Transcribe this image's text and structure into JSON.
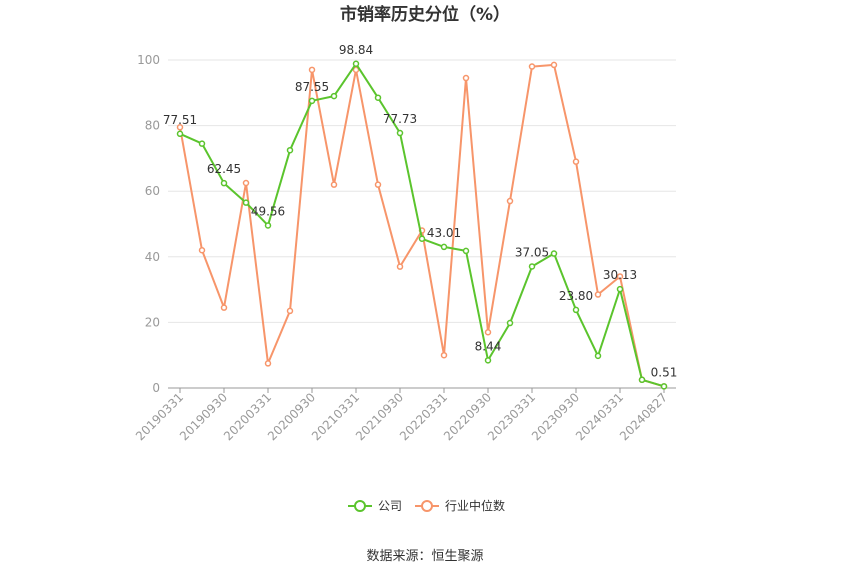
{
  "chart_data": {
    "type": "line",
    "title": "市销率历史分位（%）",
    "source": "数据来源：恒生聚源",
    "ylim": [
      0,
      100
    ],
    "yticks": [
      0,
      20,
      40,
      60,
      80,
      100
    ],
    "x": [
      "20190331",
      "20190630",
      "20190930",
      "20191231",
      "20200331",
      "20200630",
      "20200930",
      "20201231",
      "20210331",
      "20210630",
      "20210930",
      "20211231",
      "20220331",
      "20220630",
      "20220930",
      "20221231",
      "20230331",
      "20230630",
      "20230930",
      "20231231",
      "20240331",
      "20240630",
      "20240827"
    ],
    "xtick_labels": [
      "20190331",
      "20190930",
      "20200331",
      "20200930",
      "20210331",
      "20210930",
      "20220331",
      "20220930",
      "20230331",
      "20230930",
      "20240331",
      "20240827"
    ],
    "grid": true,
    "legend_position": "bottom",
    "series": [
      {
        "name": "公司",
        "color": "#5bc42d",
        "values": [
          77.51,
          74.5,
          62.45,
          56.5,
          49.56,
          72.5,
          87.55,
          89.0,
          98.84,
          88.5,
          77.73,
          45.5,
          43.01,
          41.8,
          8.44,
          19.8,
          37.05,
          41.0,
          23.8,
          9.8,
          30.13,
          2.5,
          0.51
        ],
        "labels": {
          "0": "77.51",
          "2": "62.45",
          "4": "49.56",
          "6": "87.55",
          "8": "98.84",
          "10": "77.73",
          "12": "43.01",
          "14": "8.44",
          "16": "37.05",
          "18": "23.80",
          "20": "30.13",
          "22": "0.51"
        }
      },
      {
        "name": "行业中位数",
        "color": "#f7956a",
        "values": [
          79.5,
          42.0,
          24.5,
          62.5,
          7.5,
          23.5,
          97.0,
          62.0,
          97.0,
          62.0,
          37.0,
          48.0,
          10.0,
          94.5,
          17.0,
          57.0,
          98.0,
          98.5,
          69.0,
          28.5,
          34.0,
          2.5,
          0.5
        ]
      }
    ]
  }
}
